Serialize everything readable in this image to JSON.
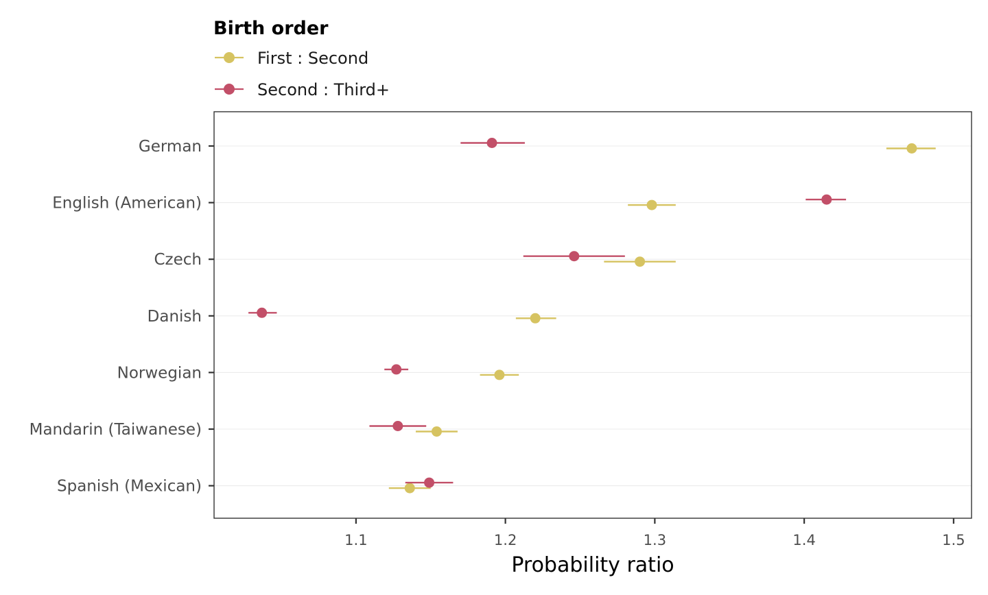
{
  "chart_data": {
    "type": "scatter",
    "subtype": "dot-and-whisker",
    "xlabel": "Probability ratio",
    "ylabel": "",
    "xlim": [
      1.005,
      1.512
    ],
    "x_ticks": [
      1.1,
      1.2,
      1.3,
      1.4,
      1.5
    ],
    "x_tick_labels": [
      "1.1",
      "1.2",
      "1.3",
      "1.4",
      "1.5"
    ],
    "categories": [
      "German",
      "English (American)",
      "Czech",
      "Danish",
      "Norwegian",
      "Mandarin (Taiwanese)",
      "Spanish (Mexican)"
    ],
    "grid": "horizontal-major",
    "legend": {
      "title": "Birth order",
      "placement": "top"
    },
    "series": [
      {
        "name": "First : Second",
        "color": "#d6c361",
        "values": [
          1.472,
          1.298,
          1.29,
          1.22,
          1.196,
          1.154,
          1.136
        ],
        "lower": [
          1.455,
          1.282,
          1.266,
          1.207,
          1.183,
          1.14,
          1.122
        ],
        "upper": [
          1.488,
          1.314,
          1.314,
          1.234,
          1.209,
          1.168,
          1.15
        ]
      },
      {
        "name": "Second : Third+",
        "color": "#c24f68",
        "values": [
          1.191,
          1.415,
          1.246,
          1.037,
          1.127,
          1.128,
          1.149
        ],
        "lower": [
          1.17,
          1.401,
          1.212,
          1.028,
          1.119,
          1.109,
          1.133
        ],
        "upper": [
          1.213,
          1.428,
          1.28,
          1.047,
          1.135,
          1.147,
          1.165
        ]
      }
    ]
  }
}
